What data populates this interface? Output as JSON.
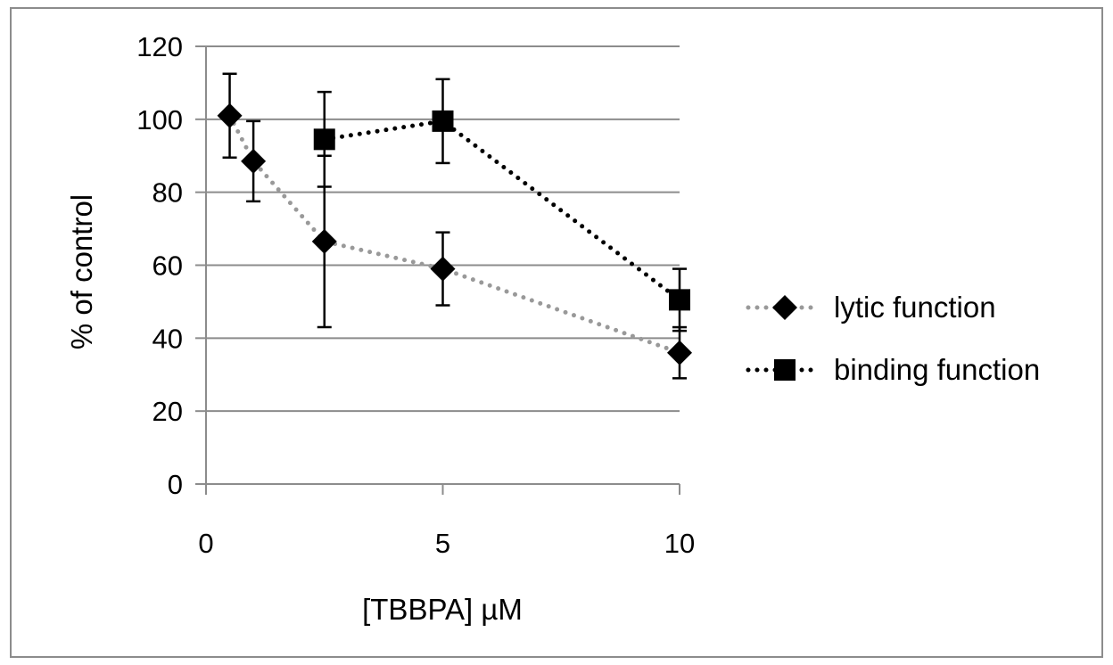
{
  "chart_data": {
    "type": "line",
    "title": "",
    "xlabel": "[TBBPA] µM",
    "ylabel": "% of control",
    "xlim": [
      0,
      10
    ],
    "ylim": [
      0,
      120
    ],
    "x_ticks": [
      "0",
      "5",
      "10"
    ],
    "y_ticks": [
      "0",
      "20",
      "40",
      "60",
      "80",
      "100",
      "120"
    ],
    "grid": "horizontal",
    "legend_position": "right",
    "series": [
      {
        "name": "lytic function",
        "marker": "diamond",
        "line_style": "dotted",
        "color": "#999999",
        "marker_color": "#000000",
        "points": [
          {
            "x": 0.5,
            "y": 101,
            "err": 11.5
          },
          {
            "x": 1,
            "y": 88.5,
            "err": 11
          },
          {
            "x": 2.5,
            "y": 66.5,
            "err": 23.5
          },
          {
            "x": 5,
            "y": 59,
            "err": 10
          },
          {
            "x": 10,
            "y": 36,
            "err": 7
          }
        ]
      },
      {
        "name": "binding function",
        "marker": "square",
        "line_style": "dotted",
        "color": "#000000",
        "marker_color": "#000000",
        "points": [
          {
            "x": 2.5,
            "y": 94.5,
            "err": 13
          },
          {
            "x": 5,
            "y": 99.5,
            "err": 11.5
          },
          {
            "x": 10,
            "y": 50.5,
            "err": 8.5
          }
        ]
      }
    ]
  }
}
